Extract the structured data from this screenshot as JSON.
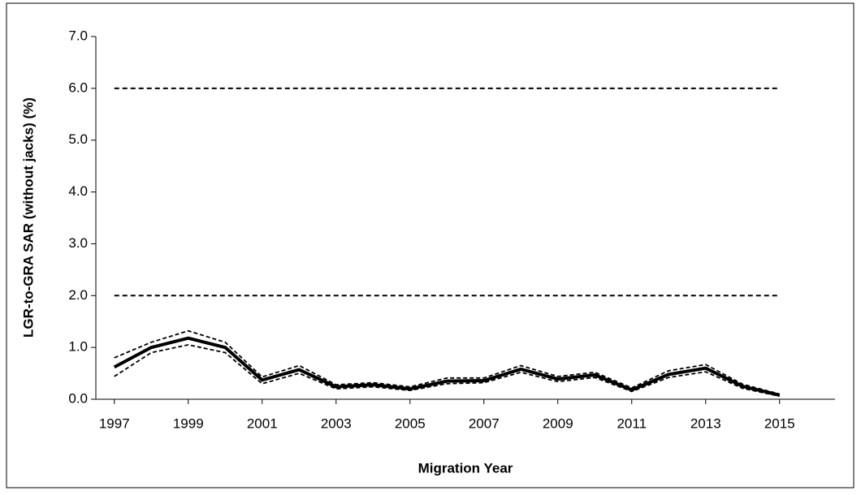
{
  "chart_data": {
    "type": "line",
    "x_label": "Migration Year",
    "y_label": "LGR-to-GRA SAR (without jacks) (%)",
    "x": [
      1997,
      1998,
      1999,
      2000,
      2001,
      2002,
      2003,
      2004,
      2005,
      2006,
      2007,
      2008,
      2009,
      2010,
      2011,
      2012,
      2013,
      2014,
      2015
    ],
    "series": [
      {
        "color": "#000000",
        "dash": false,
        "values": [
          0.62,
          1.0,
          1.18,
          1.0,
          0.37,
          0.57,
          0.24,
          0.28,
          0.2,
          0.35,
          0.36,
          0.58,
          0.39,
          0.47,
          0.18,
          0.48,
          0.6,
          0.25,
          0.08
        ]
      },
      {
        "color": "#000000",
        "dash": true,
        "values": [
          0.8,
          1.1,
          1.32,
          1.1,
          0.43,
          0.65,
          0.28,
          0.32,
          0.24,
          0.41,
          0.41,
          0.65,
          0.44,
          0.52,
          0.22,
          0.55,
          0.67,
          0.29,
          0.1
        ]
      },
      {
        "color": "#000000",
        "dash": true,
        "values": [
          0.44,
          0.9,
          1.05,
          0.9,
          0.3,
          0.5,
          0.2,
          0.24,
          0.17,
          0.3,
          0.32,
          0.52,
          0.34,
          0.42,
          0.15,
          0.42,
          0.53,
          0.21,
          0.06
        ]
      }
    ],
    "hlines": [
      2,
      6
    ],
    "xlim": [
      1996.5,
      2016.5
    ],
    "xticks": [
      1997,
      1999,
      2001,
      2003,
      2005,
      2007,
      2009,
      2011,
      2013,
      2015
    ],
    "ylim": [
      0,
      7
    ],
    "yticks": [
      {
        "value": 0,
        "label": "0.0"
      },
      {
        "value": 1,
        "label": "1.0"
      },
      {
        "value": 2,
        "label": "2.0"
      },
      {
        "value": 3,
        "label": "3.0"
      },
      {
        "value": 4,
        "label": "4.0"
      },
      {
        "value": 5,
        "label": "5.0"
      },
      {
        "value": 6,
        "label": "6.0"
      },
      {
        "value": 7,
        "label": "7.0"
      }
    ],
    "grid": false
  }
}
